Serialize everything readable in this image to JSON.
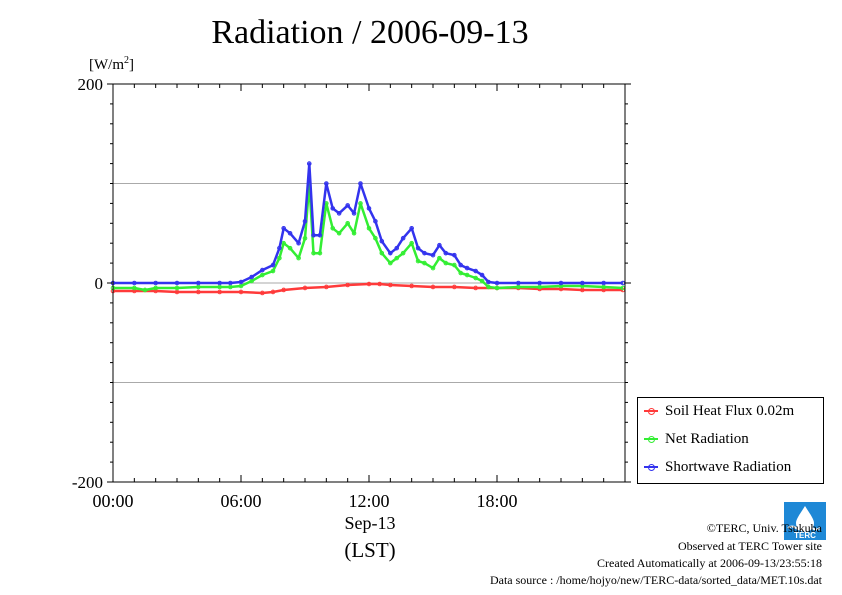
{
  "title": "Radiation / 2006-09-13",
  "unit_label": "[W/m",
  "unit_sup": "2",
  "unit_close": "]",
  "x_date_label": "Sep-13",
  "x_unit_label": "(LST)",
  "legend": [
    {
      "name": "Soil Heat Flux 0.02m",
      "color": "#ff3a3a"
    },
    {
      "name": "Net Radiation",
      "color": "#33ee33"
    },
    {
      "name": "Shortwave Radiation",
      "color": "#3333ee"
    }
  ],
  "footer": {
    "copyright": "©TERC, Univ. Tsukuba",
    "observed": "Observed at TERC Tower site",
    "created": "Created Automatically at 2006-09-13/23:55:18",
    "source": "Data source : /home/hojyo/new/TERC-data/sorted_data/MET.10s.dat"
  },
  "logo_text": "TERC",
  "chart_data": {
    "type": "line",
    "title": "Radiation / 2006-09-13",
    "ylabel": "[W/m2]",
    "xlabel": "Sep-13 (LST)",
    "ylim": [
      -200,
      200
    ],
    "xlim": [
      0,
      24
    ],
    "y_ticks": [
      {
        "value": 200,
        "label": "200"
      },
      {
        "value": 0,
        "label": "0"
      },
      {
        "value": -200,
        "label": "-200"
      }
    ],
    "y_gridlines": [
      100,
      0,
      -100
    ],
    "x_ticks": [
      {
        "value": 0,
        "label": "00:00"
      },
      {
        "value": 6,
        "label": "06:00"
      },
      {
        "value": 12,
        "label": "12:00"
      },
      {
        "value": 18,
        "label": "18:00"
      }
    ],
    "grid": true,
    "legend_position": "bottom-right",
    "series": [
      {
        "name": "Soil Heat Flux 0.02m",
        "color": "#ff3a3a",
        "x": [
          0,
          1,
          2,
          3,
          4,
          5,
          6,
          7,
          7.5,
          8,
          9,
          10,
          11,
          12,
          12.5,
          13,
          14,
          15,
          16,
          17,
          18,
          19,
          20,
          21,
          22,
          23,
          23.9
        ],
        "y": [
          -8,
          -8,
          -8,
          -9,
          -9,
          -9,
          -9,
          -10,
          -9,
          -7,
          -5,
          -4,
          -2,
          -1,
          -1,
          -2,
          -3,
          -4,
          -4,
          -5,
          -5,
          -5,
          -6,
          -6,
          -7,
          -7,
          -7
        ]
      },
      {
        "name": "Net Radiation",
        "color": "#33ee33",
        "x": [
          0,
          1,
          1.5,
          2,
          3,
          4,
          5,
          5.5,
          6,
          6.5,
          7,
          7.5,
          7.8,
          8,
          8.3,
          8.7,
          9,
          9.2,
          9.4,
          9.7,
          10,
          10.3,
          10.6,
          11,
          11.3,
          11.6,
          12,
          12.3,
          12.6,
          13,
          13.3,
          13.6,
          14,
          14.3,
          14.6,
          15,
          15.3,
          15.6,
          16,
          16.3,
          16.6,
          17,
          17.3,
          17.6,
          18,
          19,
          20,
          21,
          22,
          23,
          23.9
        ],
        "y": [
          -5,
          -5,
          -7,
          -5,
          -5,
          -4,
          -4,
          -4,
          -3,
          2,
          8,
          12,
          25,
          40,
          35,
          25,
          45,
          100,
          30,
          30,
          80,
          55,
          50,
          60,
          50,
          80,
          55,
          45,
          30,
          20,
          25,
          30,
          40,
          22,
          20,
          15,
          25,
          20,
          18,
          10,
          8,
          5,
          2,
          -4,
          -5,
          -4,
          -4,
          -3,
          -3,
          -4,
          -5
        ]
      },
      {
        "name": "Shortwave Radiation",
        "color": "#3333ee",
        "x": [
          0,
          1,
          2,
          3,
          4,
          5,
          5.5,
          6,
          6.5,
          7,
          7.5,
          7.8,
          8,
          8.3,
          8.7,
          9,
          9.2,
          9.4,
          9.7,
          10,
          10.3,
          10.6,
          11,
          11.3,
          11.6,
          12,
          12.3,
          12.6,
          13,
          13.3,
          13.6,
          14,
          14.3,
          14.6,
          15,
          15.3,
          15.6,
          16,
          16.3,
          16.6,
          17,
          17.3,
          17.6,
          18,
          19,
          20,
          21,
          22,
          23,
          23.9
        ],
        "y": [
          0,
          0,
          0,
          0,
          0,
          0,
          0,
          1,
          6,
          13,
          18,
          35,
          55,
          50,
          40,
          62,
          120,
          48,
          48,
          100,
          75,
          70,
          78,
          70,
          100,
          75,
          62,
          42,
          30,
          35,
          45,
          55,
          35,
          30,
          28,
          38,
          30,
          28,
          18,
          15,
          12,
          8,
          1,
          0,
          0,
          0,
          0,
          0,
          0,
          0
        ]
      }
    ]
  }
}
